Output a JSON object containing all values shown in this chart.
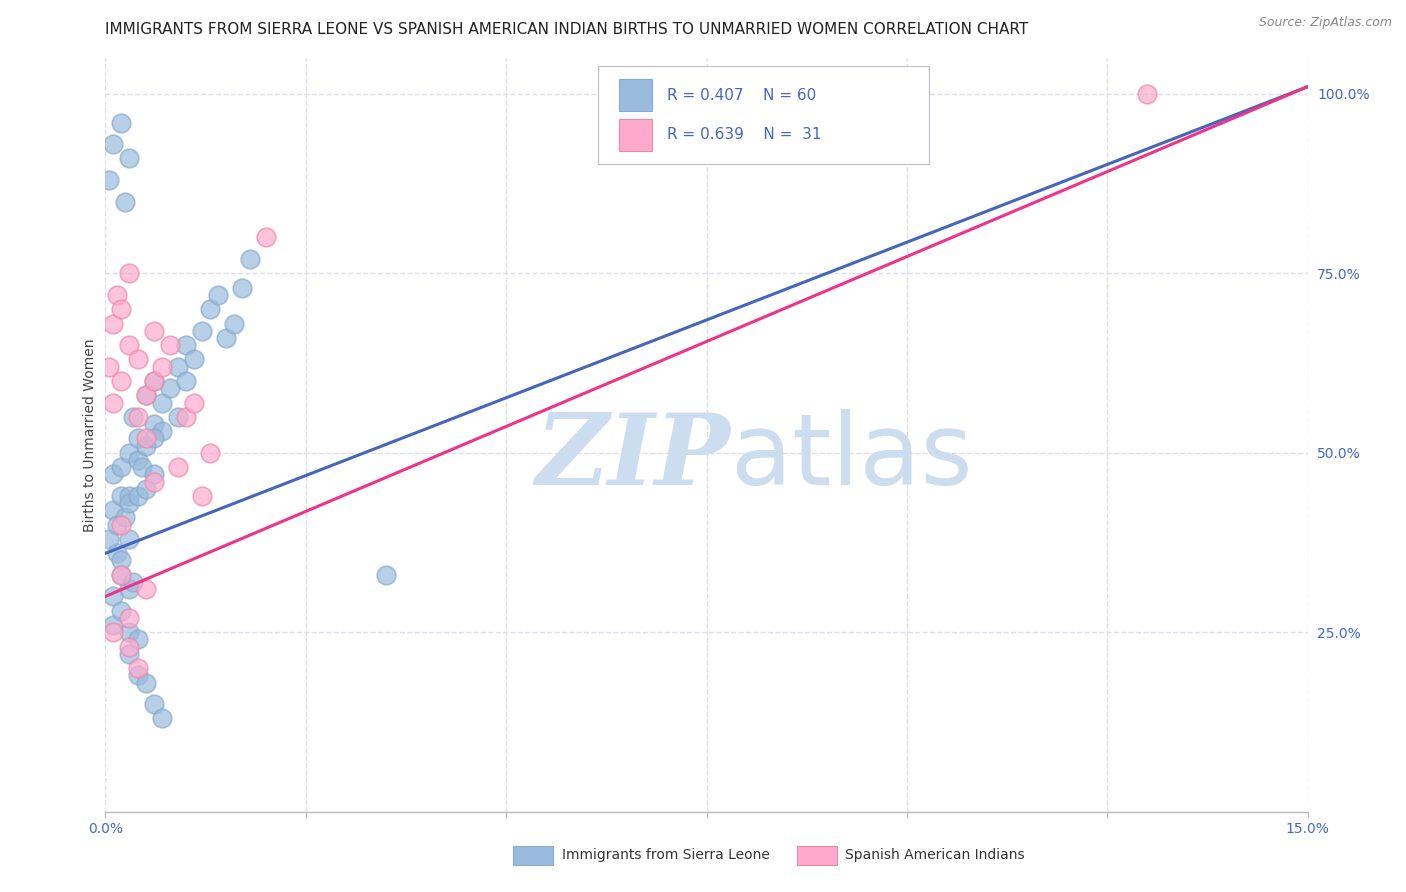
{
  "title": "IMMIGRANTS FROM SIERRA LEONE VS SPANISH AMERICAN INDIAN BIRTHS TO UNMARRIED WOMEN CORRELATION CHART",
  "source": "Source: ZipAtlas.com",
  "ylabel": "Births to Unmarried Women",
  "legend_blue_r": "R = 0.407",
  "legend_blue_n": "N = 60",
  "legend_pink_r": "R = 0.639",
  "legend_pink_n": "N = 31",
  "legend_label_blue": "Immigrants from Sierra Leone",
  "legend_label_pink": "Spanish American Indians",
  "blue_color": "#99BBDD",
  "pink_color": "#FFAACC",
  "blue_edge_color": "#88AACC",
  "pink_edge_color": "#EE88AA",
  "trendline_blue": "#4466BB",
  "trendline_pink": "#EE3388",
  "trendline_blue_dash": "#99BBDD",
  "watermark_zip": "ZIP",
  "watermark_atlas": "atlas",
  "gridline_color": "#DDDDEE",
  "background_color": "#FFFFFF",
  "title_fontsize": 11,
  "axis_label_fontsize": 10,
  "tick_fontsize": 10,
  "watermark_fontsize": 72,
  "xlim": [
    0.0,
    0.15
  ],
  "ylim": [
    0.0,
    1.05
  ],
  "blue_scatter_x": [
    0.0005,
    0.001,
    0.001,
    0.0015,
    0.0015,
    0.002,
    0.002,
    0.002,
    0.0025,
    0.003,
    0.003,
    0.003,
    0.003,
    0.0035,
    0.004,
    0.004,
    0.004,
    0.0045,
    0.005,
    0.005,
    0.005,
    0.006,
    0.006,
    0.006,
    0.007,
    0.007,
    0.008,
    0.009,
    0.009,
    0.01,
    0.01,
    0.011,
    0.012,
    0.013,
    0.014,
    0.015,
    0.016,
    0.017,
    0.018,
    0.001,
    0.001,
    0.002,
    0.002,
    0.003,
    0.003,
    0.004,
    0.004,
    0.005,
    0.006,
    0.007,
    0.0005,
    0.001,
    0.002,
    0.003,
    0.0025,
    0.003,
    0.0035,
    0.006,
    0.035,
    0.065
  ],
  "blue_scatter_y": [
    0.38,
    0.42,
    0.47,
    0.4,
    0.36,
    0.44,
    0.35,
    0.48,
    0.41,
    0.44,
    0.5,
    0.38,
    0.43,
    0.55,
    0.49,
    0.44,
    0.52,
    0.48,
    0.51,
    0.45,
    0.58,
    0.54,
    0.47,
    0.6,
    0.57,
    0.53,
    0.59,
    0.62,
    0.55,
    0.6,
    0.65,
    0.63,
    0.67,
    0.7,
    0.72,
    0.66,
    0.68,
    0.73,
    0.77,
    0.3,
    0.26,
    0.33,
    0.28,
    0.25,
    0.22,
    0.19,
    0.24,
    0.18,
    0.15,
    0.13,
    0.88,
    0.93,
    0.96,
    0.31,
    0.85,
    0.91,
    0.32,
    0.52,
    0.33,
    0.98
  ],
  "pink_scatter_x": [
    0.0005,
    0.001,
    0.001,
    0.0015,
    0.002,
    0.002,
    0.003,
    0.003,
    0.004,
    0.004,
    0.005,
    0.005,
    0.006,
    0.006,
    0.007,
    0.008,
    0.009,
    0.01,
    0.011,
    0.012,
    0.013,
    0.001,
    0.002,
    0.003,
    0.004,
    0.005,
    0.006,
    0.002,
    0.003,
    0.02,
    0.13
  ],
  "pink_scatter_y": [
    0.62,
    0.68,
    0.57,
    0.72,
    0.7,
    0.6,
    0.65,
    0.75,
    0.55,
    0.63,
    0.58,
    0.52,
    0.6,
    0.67,
    0.62,
    0.65,
    0.48,
    0.55,
    0.57,
    0.44,
    0.5,
    0.25,
    0.33,
    0.27,
    0.2,
    0.31,
    0.46,
    0.4,
    0.23,
    0.8,
    1.0
  ],
  "xtick_positions": [
    0.0,
    0.025,
    0.05,
    0.075,
    0.1,
    0.125,
    0.15
  ],
  "ytick_right_positions": [
    0.25,
    0.5,
    0.75,
    1.0
  ],
  "ytick_right_labels": [
    "25.0%",
    "50.0%",
    "75.0%",
    "100.0%"
  ],
  "blue_trend_x0": 0.0,
  "blue_trend_x1": 0.15,
  "blue_trend_y0": 0.36,
  "blue_trend_y1": 1.01,
  "pink_trend_x0": 0.0,
  "pink_trend_x1": 0.15,
  "pink_trend_y0": 0.3,
  "pink_trend_y1": 1.01
}
